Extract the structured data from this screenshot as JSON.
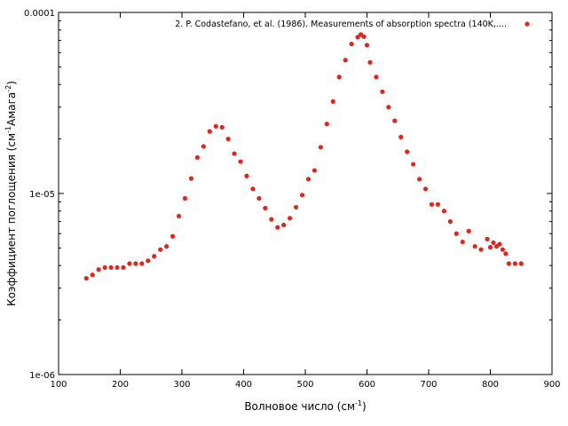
{
  "chart_data": {
    "type": "scatter",
    "title": "",
    "xlabel": "Волновое число (см",
    "xlabel_sup": "-1",
    "xlabel_end": ")",
    "ylabel_parts": [
      "Коэффициент поглощения (см",
      "-1",
      "Амага",
      "-2",
      ")"
    ],
    "xlim": [
      100,
      900
    ],
    "ylim": [
      1e-06,
      0.0001
    ],
    "yscale": "log",
    "x_ticks": [
      100,
      200,
      300,
      400,
      500,
      600,
      700,
      800,
      900
    ],
    "y_ticks": [
      {
        "value": 1e-06,
        "label": "1e-06"
      },
      {
        "value": 1e-05,
        "label": "1e-05"
      },
      {
        "value": 0.0001,
        "label": "0.0001"
      }
    ],
    "grid": false,
    "legend": {
      "placement": "top-right"
    },
    "series": [
      {
        "name": "2. P. Codastefano,  et al. (1986). Measurements of absorption spectra (140K,....",
        "color": "#e0251b",
        "marker": "circle",
        "x": [
          145,
          155,
          165,
          175,
          185,
          195,
          205,
          215,
          225,
          235,
          245,
          255,
          265,
          275,
          285,
          295,
          305,
          315,
          325,
          335,
          345,
          355,
          365,
          375,
          385,
          395,
          405,
          415,
          425,
          435,
          445,
          455,
          465,
          475,
          485,
          495,
          505,
          515,
          525,
          535,
          545,
          555,
          565,
          575,
          585,
          590,
          595,
          600,
          605,
          615,
          625,
          635,
          645,
          655,
          665,
          675,
          685,
          695,
          705,
          715,
          725,
          735,
          745,
          755,
          765,
          775,
          785,
          795,
          800,
          805,
          810,
          815,
          820,
          825,
          830,
          840,
          850
        ],
        "y": [
          3.4e-06,
          3.55e-06,
          3.8e-06,
          3.9e-06,
          3.9e-06,
          3.9e-06,
          3.9e-06,
          4.1e-06,
          4.1e-06,
          4.1e-06,
          4.25e-06,
          4.5e-06,
          4.9e-06,
          5.1e-06,
          5.8e-06,
          7.5e-06,
          9.4e-06,
          1.21e-05,
          1.58e-05,
          1.82e-05,
          2.2e-05,
          2.35e-05,
          2.32e-05,
          2e-05,
          1.66e-05,
          1.5e-05,
          1.25e-05,
          1.06e-05,
          9.4e-06,
          8.3e-06,
          7.2e-06,
          6.5e-06,
          6.7e-06,
          7.3e-06,
          8.4e-06,
          9.8e-06,
          1.2e-05,
          1.34e-05,
          1.8e-05,
          2.42e-05,
          3.22e-05,
          4.4e-05,
          5.45e-05,
          6.7e-05,
          7.3e-05,
          7.55e-05,
          7.35e-05,
          6.6e-05,
          5.3e-05,
          4.4e-05,
          3.65e-05,
          3e-05,
          2.52e-05,
          2.05e-05,
          1.7e-05,
          1.45e-05,
          1.2e-05,
          1.06e-05,
          8.7e-06,
          8.7e-06,
          8e-06,
          7e-06,
          6e-06,
          5.4e-06,
          6.2e-06,
          5.1e-06,
          4.9e-06,
          5.6e-06,
          5.05e-06,
          5.35e-06,
          5.1e-06,
          5.25e-06,
          4.9e-06,
          4.65e-06,
          4.1e-06,
          4.1e-06,
          4.1e-06
        ]
      }
    ]
  }
}
